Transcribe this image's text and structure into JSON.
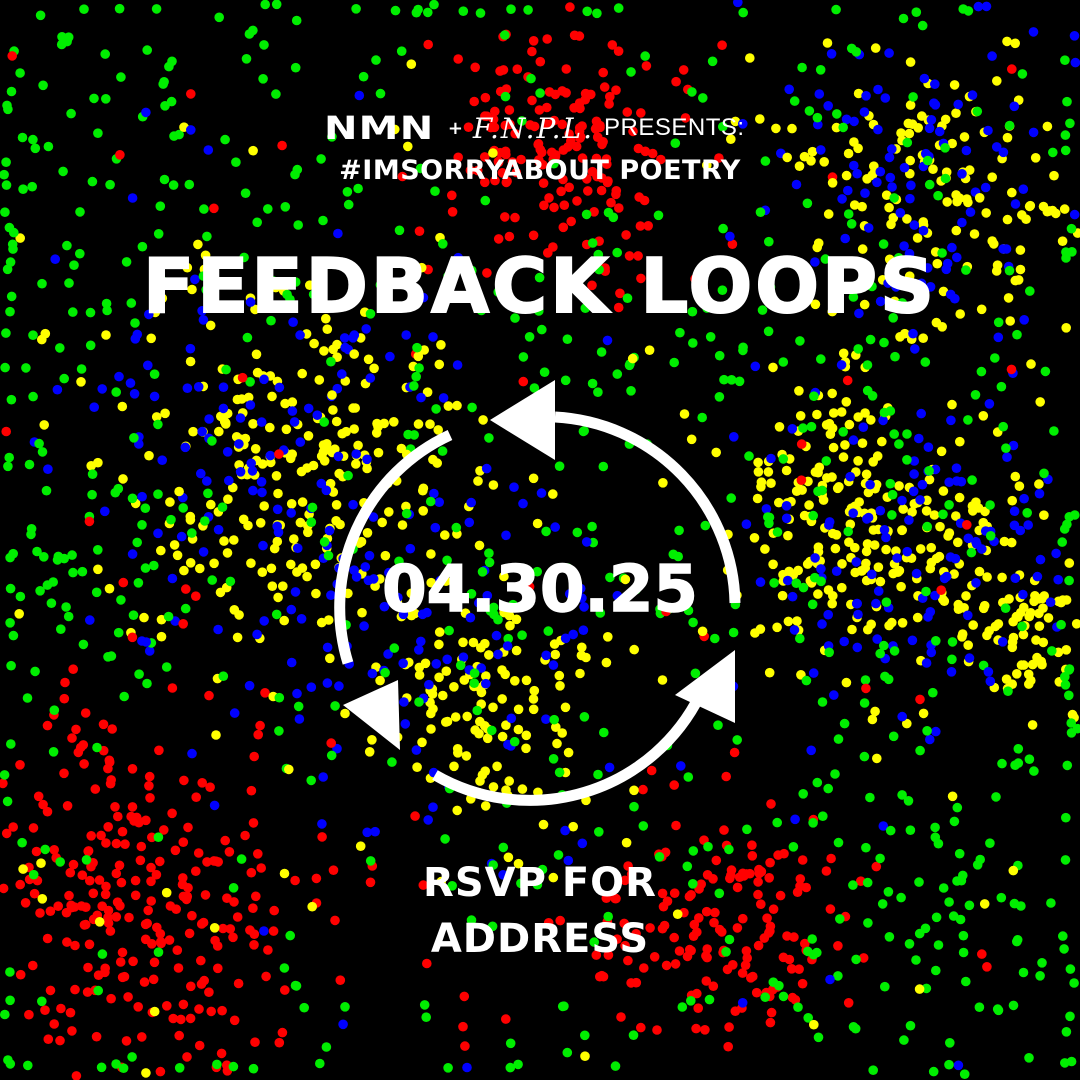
{
  "presenters": {
    "logo_1": "NMN",
    "plus": "+",
    "logo_2": "F.N.P.L.",
    "presents": "PRESENTS:"
  },
  "hashtag": "#IMSORRYABOUT POETRY",
  "title": "FEEDBACK LOOPS",
  "date": "04.30.25",
  "rsvp": {
    "line1": "RSVP FOR",
    "line2": "ADDRESS"
  },
  "background": {
    "color": "#000000",
    "dot_colors": [
      "#ff0000",
      "#00ee00",
      "#0000ff",
      "#ffff00"
    ]
  },
  "icon": "cycle-arrows-icon"
}
